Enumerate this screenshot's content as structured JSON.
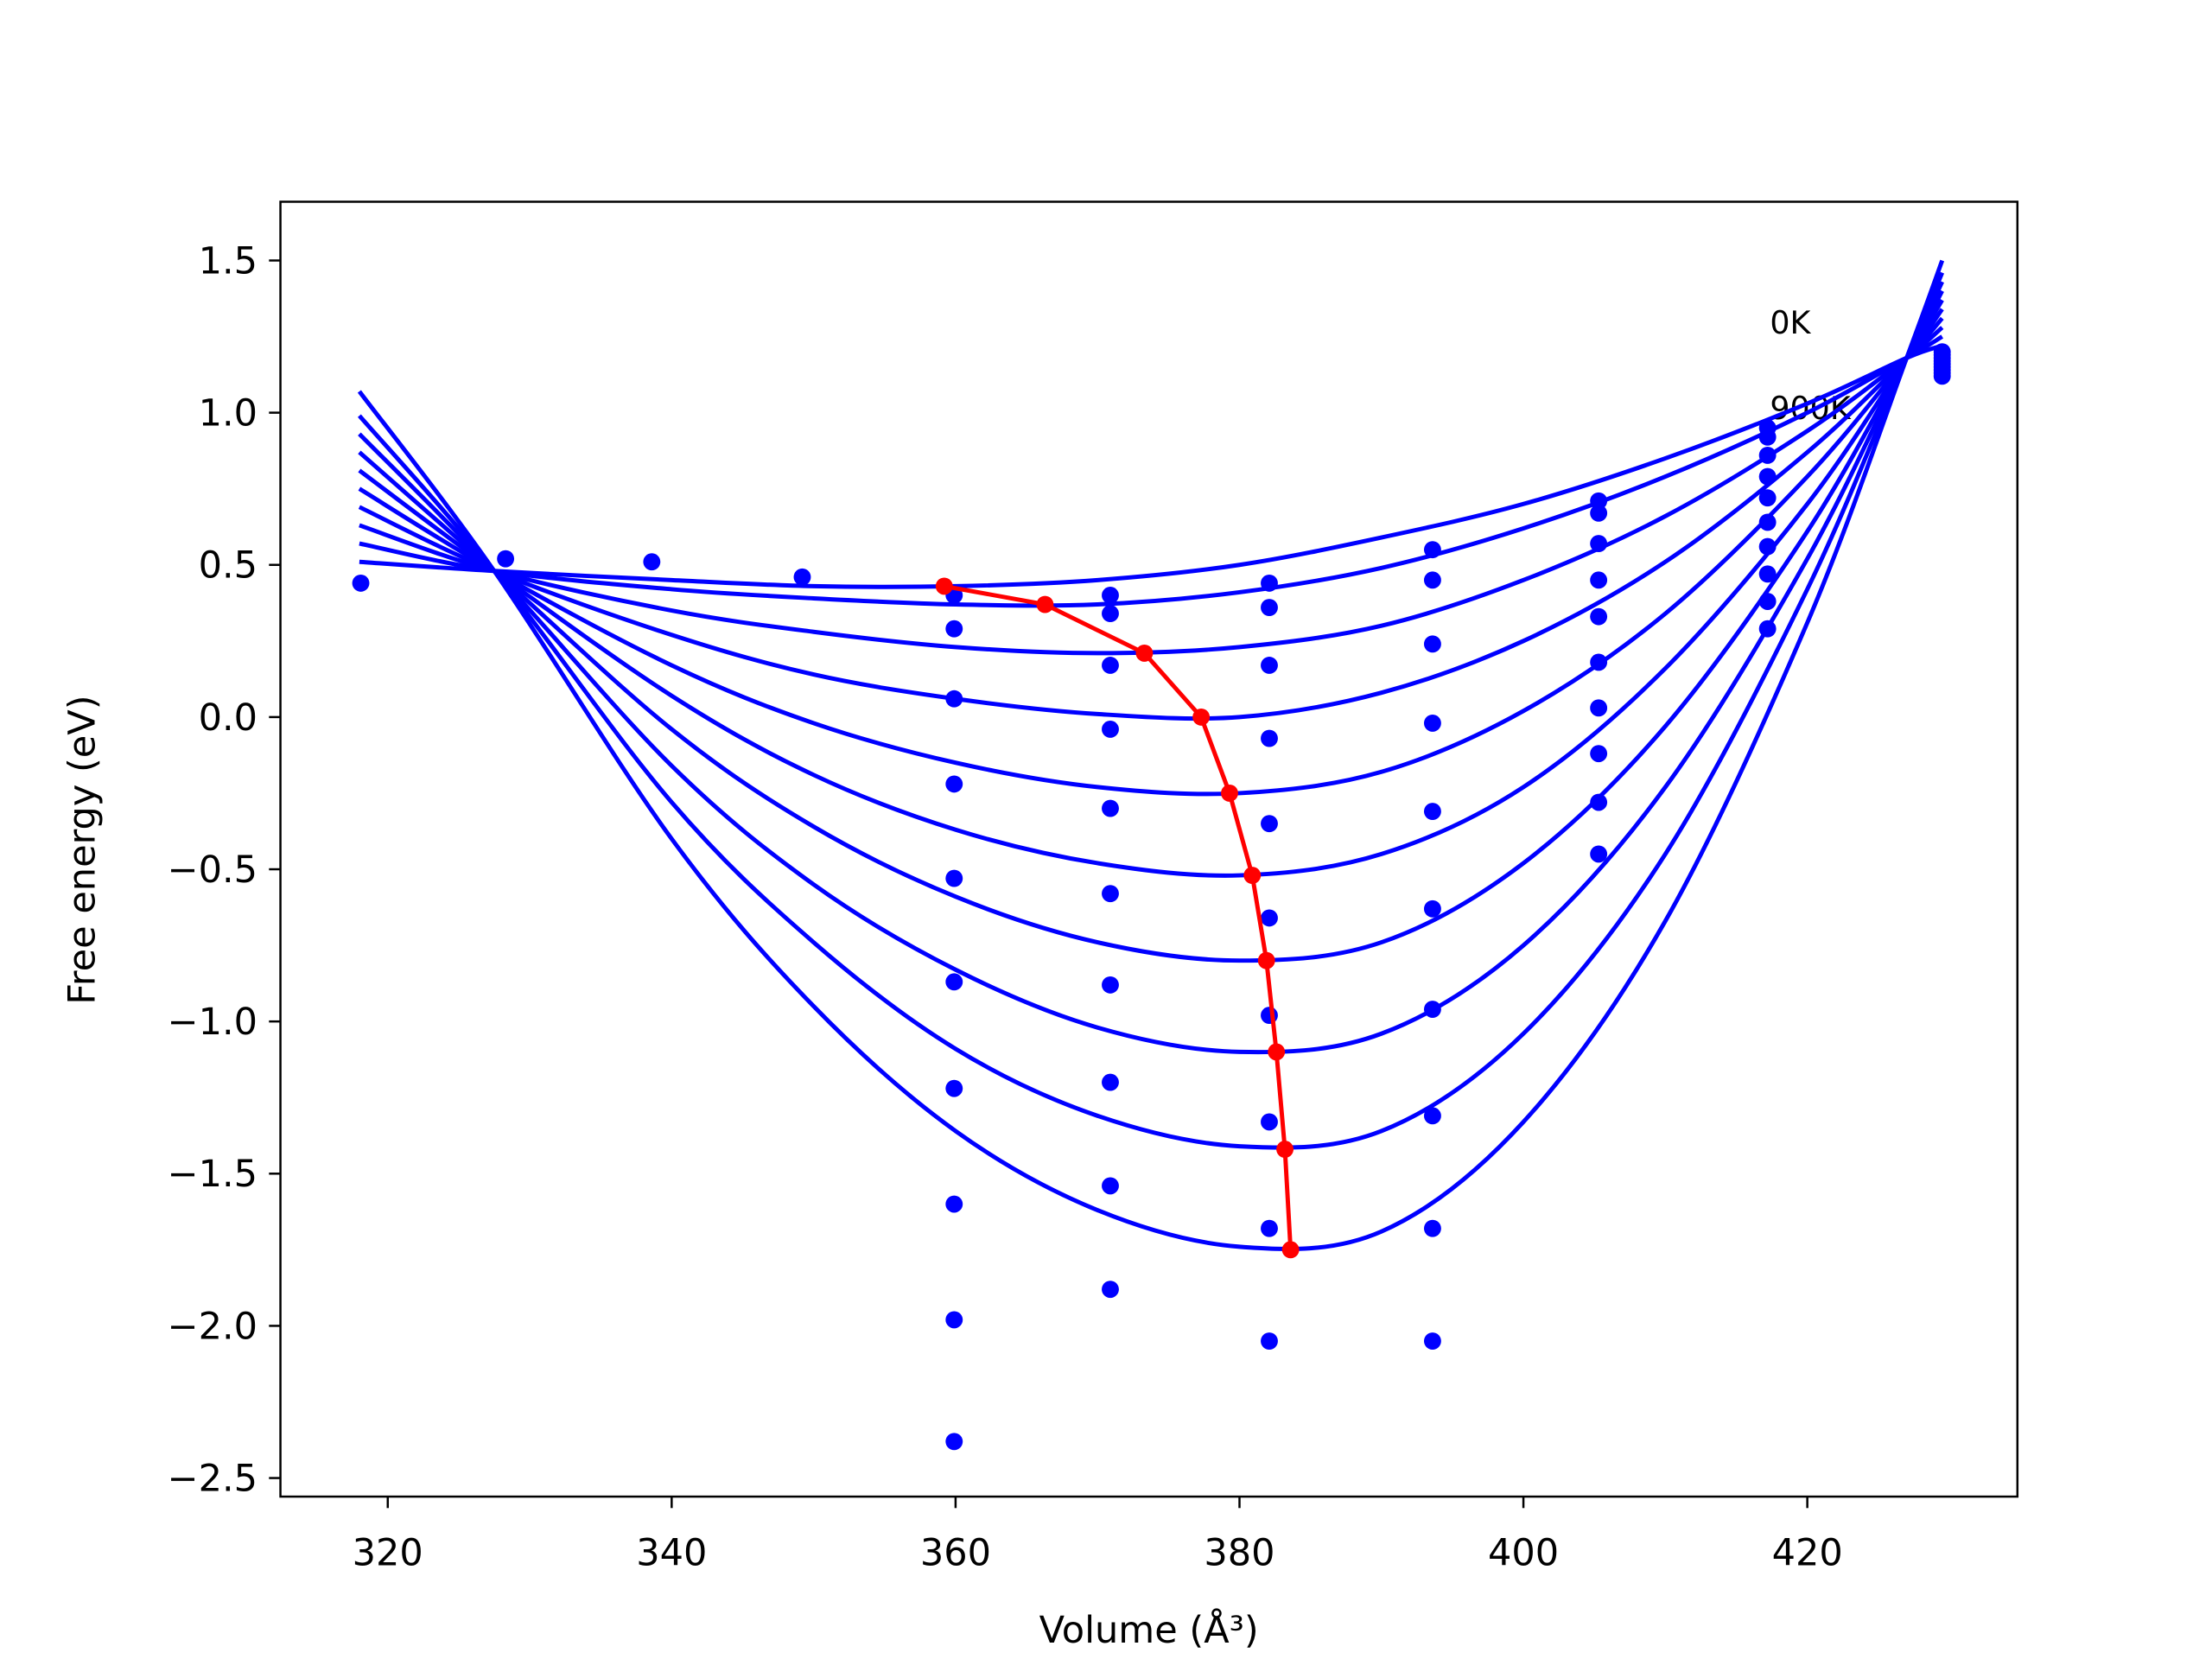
{
  "chart_data": {
    "type": "line",
    "xlabel": "Volume (Å³)",
    "ylabel": "Free energy (eV)",
    "xlim": [
      312.44,
      434.8
    ],
    "ylim": [
      -2.561,
      1.693
    ],
    "xticks": [
      320,
      340,
      360,
      380,
      400,
      420
    ],
    "yticks": [
      1.5,
      {
        "value": 1,
        "label": "1.0"
      },
      0.5,
      {
        "value": 0,
        "label": "0.0"
      },
      {
        "value": -0.5,
        "label": "−0.5"
      },
      {
        "value": -1,
        "label": "−1.0"
      },
      {
        "value": -1.5,
        "label": "−1.5"
      },
      {
        "value": -2,
        "label": "−2.0"
      },
      {
        "value": -2.5,
        "label": "−2.5"
      }
    ],
    "annotations": [
      "0K",
      "900K"
    ],
    "x": [
      318,
      327.5,
      340,
      350,
      360,
      370,
      380,
      390,
      400,
      410,
      420,
      427,
      429.5
    ],
    "series": [
      {
        "color": "#0000ff",
        "values": [
          0.51,
          0.48,
          0.45,
          0.43,
          0.43,
          0.45,
          0.5,
          0.59,
          0.7,
          0.85,
          1.03,
          1.18,
          1.22
        ]
      },
      {
        "color": "#0000ff",
        "values": [
          0.57,
          0.48,
          0.42,
          0.39,
          0.37,
          0.37,
          0.41,
          0.49,
          0.62,
          0.79,
          1.0,
          1.18,
          1.25
        ]
      },
      {
        "color": "#0000ff",
        "values": [
          0.63,
          0.48,
          0.35,
          0.28,
          0.23,
          0.21,
          0.23,
          0.3,
          0.45,
          0.66,
          0.94,
          1.18,
          1.28
        ]
      },
      {
        "color": "#0000ff",
        "values": [
          0.69,
          0.48,
          0.27,
          0.14,
          0.06,
          0.01,
          0.0,
          0.08,
          0.25,
          0.51,
          0.87,
          1.18,
          1.31
        ]
      },
      {
        "color": "#0000ff",
        "values": [
          0.75,
          0.48,
          0.17,
          -0.02,
          -0.15,
          -0.23,
          -0.25,
          -0.18,
          0.02,
          0.34,
          0.79,
          1.18,
          1.34
        ]
      },
      {
        "color": "#0000ff",
        "values": [
          0.81,
          0.48,
          0.07,
          -0.19,
          -0.37,
          -0.48,
          -0.52,
          -0.45,
          -0.23,
          0.16,
          0.7,
          1.18,
          1.37
        ]
      },
      {
        "color": "#0000ff",
        "values": [
          0.87,
          0.48,
          -0.04,
          -0.36,
          -0.59,
          -0.74,
          -0.8,
          -0.74,
          -0.48,
          -0.03,
          0.61,
          1.18,
          1.4
        ]
      },
      {
        "color": "#0000ff",
        "values": [
          0.93,
          0.48,
          -0.16,
          -0.55,
          -0.83,
          -1.02,
          -1.1,
          -1.04,
          -0.75,
          -0.23,
          0.52,
          1.18,
          1.43
        ]
      },
      {
        "color": "#0000ff",
        "values": [
          0.99,
          0.48,
          -0.28,
          -0.74,
          -1.09,
          -1.31,
          -1.41,
          -1.36,
          -1.04,
          -0.45,
          0.42,
          1.18,
          1.46
        ]
      },
      {
        "color": "#0000ff",
        "values": [
          1.07,
          0.48,
          -0.4,
          -0.95,
          -1.36,
          -1.62,
          -1.74,
          -1.69,
          -1.33,
          -0.67,
          0.31,
          1.18,
          1.5
        ]
      }
    ],
    "points": {
      "color": "#0000ff",
      "x": [
        318.1,
        328.3,
        338.6,
        349.2,
        359.9,
        359.9,
        359.9,
        359.9,
        359.9,
        359.9,
        359.9,
        359.9,
        359.9,
        359.9,
        370.9,
        370.9,
        370.9,
        370.9,
        370.9,
        370.9,
        370.9,
        370.9,
        370.9,
        370.9,
        382.1,
        382.1,
        382.1,
        382.1,
        382.1,
        382.1,
        382.1,
        382.1,
        382.1,
        382.1,
        393.6,
        393.6,
        393.6,
        393.6,
        393.6,
        393.6,
        393.6,
        393.6,
        393.6,
        393.6,
        405.3,
        405.3,
        405.3,
        405.3,
        405.3,
        405.3,
        405.3,
        405.3,
        405.3,
        405.3,
        417.2,
        417.2,
        417.2,
        417.2,
        417.2,
        417.2,
        417.2,
        417.2,
        417.2,
        417.2,
        429.5,
        429.5,
        429.5,
        429.5,
        429.5,
        429.5,
        429.5,
        429.5,
        429.5
      ],
      "values": [
        0.44,
        0.52,
        0.51,
        0.46,
        0.4,
        0.29,
        0.06,
        -0.22,
        -0.53,
        -0.87,
        -1.22,
        -1.6,
        -1.98,
        -2.38,
        0.4,
        0.34,
        0.17,
        -0.04,
        -0.3,
        -0.58,
        -0.88,
        -1.2,
        -1.54,
        -1.88,
        0.44,
        0.36,
        0.17,
        -0.07,
        -0.35,
        -0.66,
        -0.98,
        -1.33,
        -1.68,
        -2.05,
        0.55,
        0.45,
        0.24,
        -0.02,
        -0.31,
        -0.63,
        -0.96,
        -1.31,
        -1.68,
        -2.05,
        0.71,
        0.67,
        0.57,
        0.45,
        0.33,
        0.18,
        0.03,
        -0.12,
        -0.28,
        -0.45,
        0.95,
        0.92,
        0.86,
        0.79,
        0.72,
        0.64,
        0.56,
        0.47,
        0.38,
        0.29,
        1.2,
        1.19,
        1.18,
        1.17,
        1.16,
        1.15,
        1.14,
        1.13,
        1.12
      ]
    },
    "minima": {
      "color": "#ff0000",
      "x": [
        359.2,
        366.3,
        373.3,
        377.3,
        379.3,
        380.9,
        381.9,
        382.6,
        383.2,
        383.6
      ],
      "values": [
        0.43,
        0.37,
        0.21,
        0.0,
        -0.25,
        -0.52,
        -0.8,
        -1.1,
        -1.42,
        -1.75
      ]
    }
  }
}
